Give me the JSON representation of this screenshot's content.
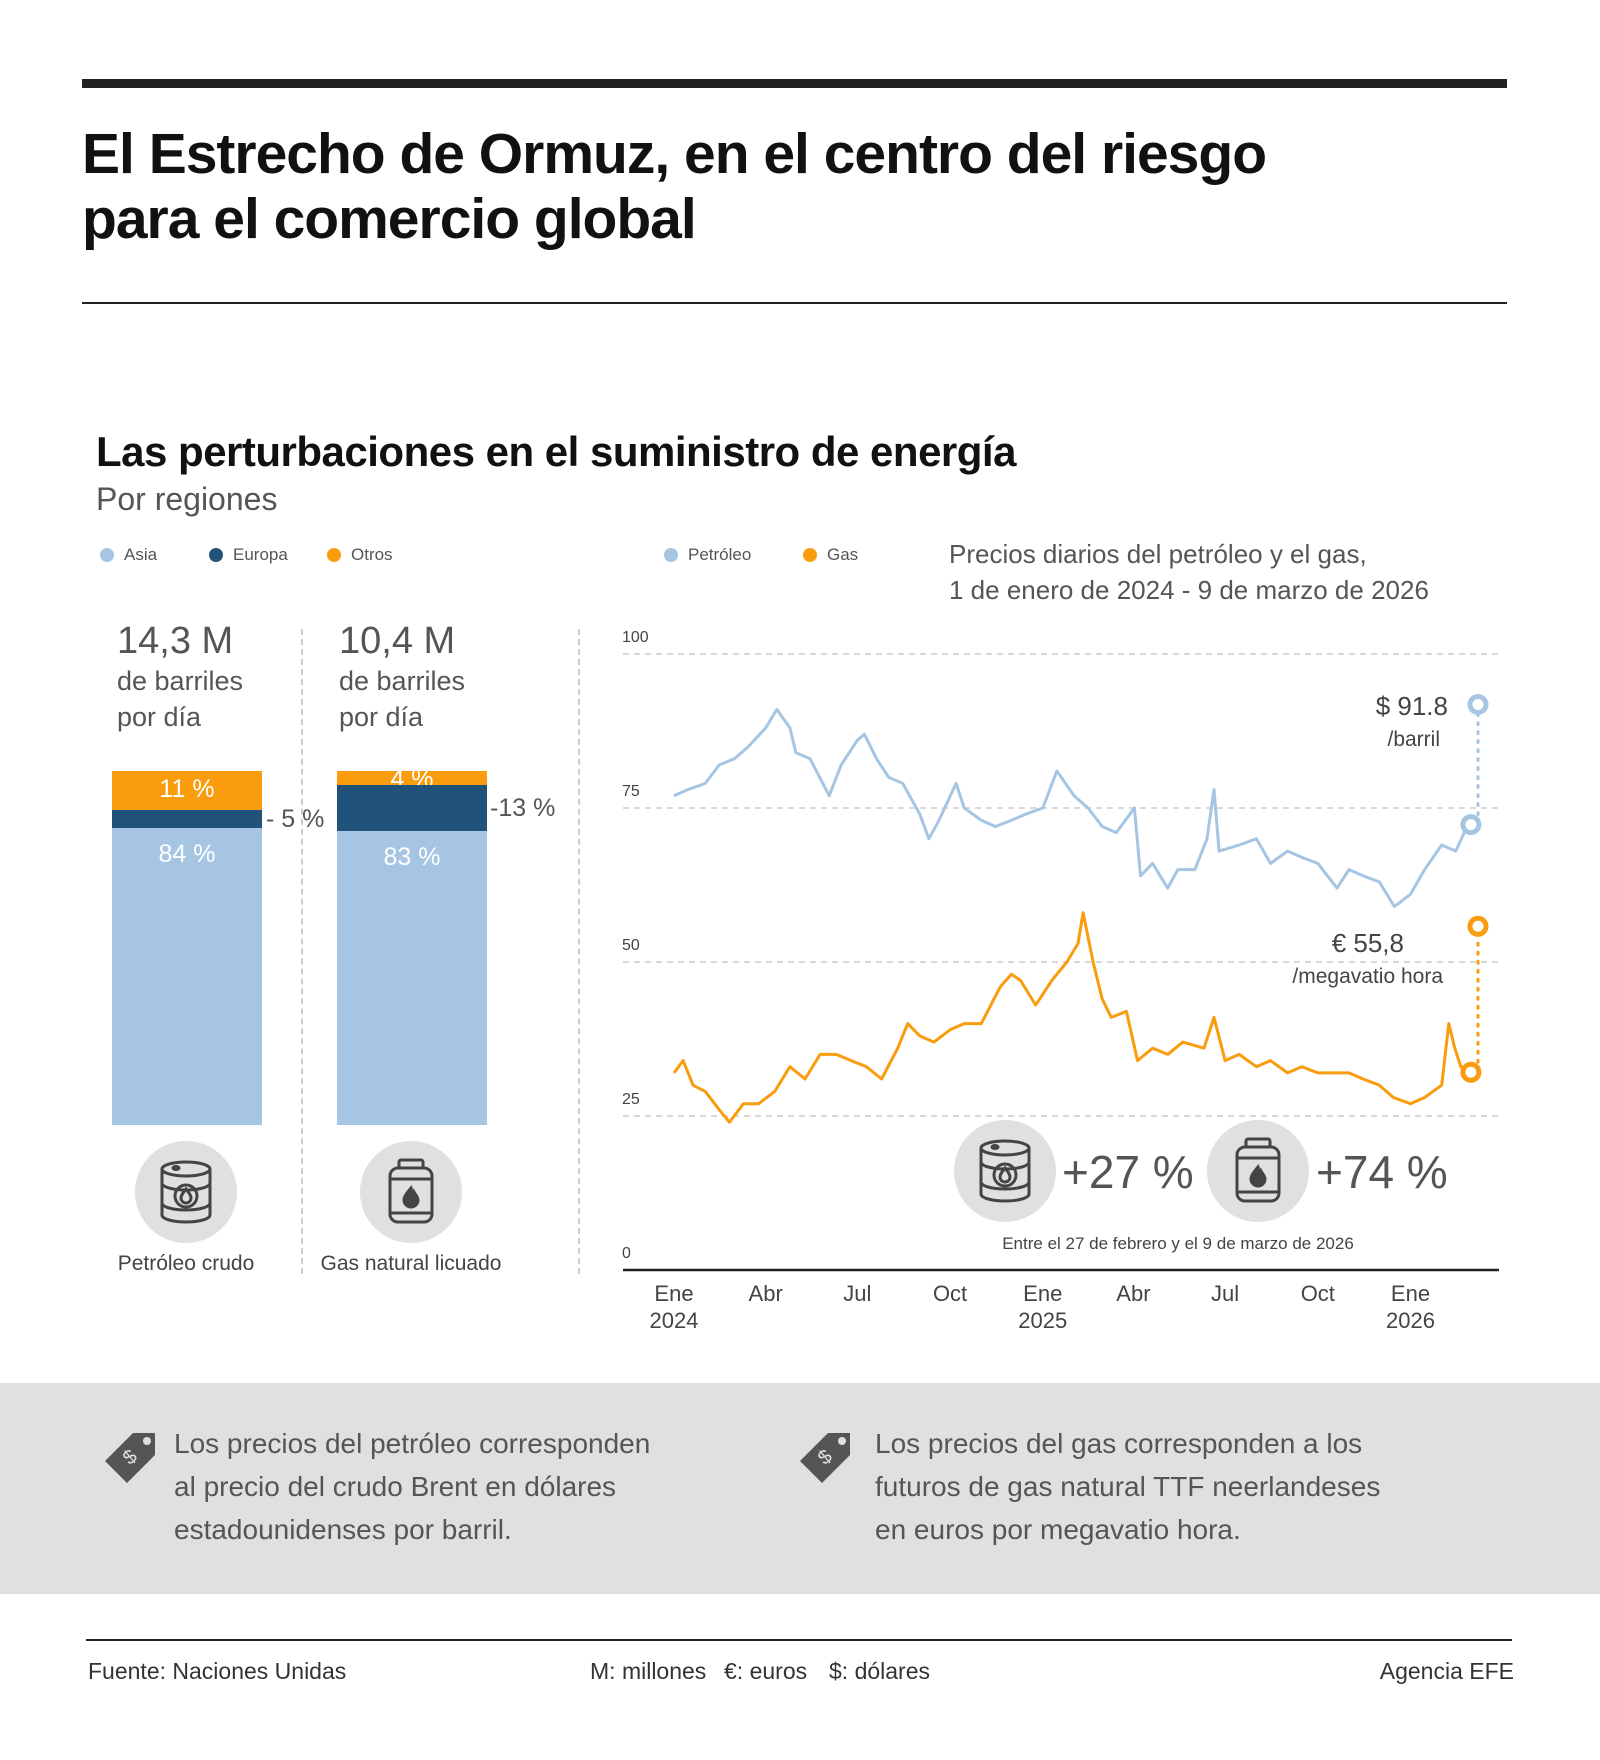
{
  "header": {
    "title_line1": "El Estrecho de Ormuz, en el centro del riesgo",
    "title_line2": "para el comercio global"
  },
  "section": {
    "title": "Las perturbaciones en el suministro de energía",
    "subtitle": "Por regiones"
  },
  "colors": {
    "asia": "#a6c5e3",
    "europa": "#21537a",
    "otros": "#f99c0e",
    "petroleo": "#a6c5e3",
    "gas": "#f99c0e"
  },
  "legend_regions": [
    {
      "label": "Asia",
      "color": "#a6c5e3"
    },
    {
      "label": "Europa",
      "color": "#21537a"
    },
    {
      "label": "Otros",
      "color": "#f99c0e"
    }
  ],
  "legend_prices": [
    {
      "label": "Petróleo",
      "color": "#a6c5e3"
    },
    {
      "label": "Gas",
      "color": "#f99c0e"
    }
  ],
  "chart_data": [
    {
      "type": "bar",
      "stacked": true,
      "percent": true,
      "categories": [
        "Petróleo crudo",
        "Gas natural licuado"
      ],
      "totals": [
        {
          "value": "14,3 M",
          "unit_line1": "de barriles",
          "unit_line2": "por día"
        },
        {
          "value": "10,4 M",
          "unit_line1": "de barriles",
          "unit_line2": "por día"
        }
      ],
      "series": [
        {
          "name": "Asia",
          "values": [
            84,
            83
          ],
          "labels": [
            "84 %",
            "83 %"
          ]
        },
        {
          "name": "Europa",
          "values": [
            5,
            13
          ],
          "labels": [
            "- 5 %",
            "-13 %"
          ]
        },
        {
          "name": "Otros",
          "values": [
            11,
            4
          ],
          "labels": [
            "11 %",
            "4 %"
          ]
        }
      ],
      "icons": [
        "oil-barrel-icon",
        "gas-cylinder-icon"
      ]
    },
    {
      "type": "line",
      "title_line1": "Precios diarios del petróleo y el gas,",
      "title_line2": "1 de enero de 2024 - 9 de marzo de 2026",
      "ylim": [
        0,
        100
      ],
      "yticks": [
        "0",
        "25",
        "50",
        "75",
        "100"
      ],
      "grid": true,
      "xticks": [
        {
          "date": "2024-01-01",
          "l1": "Ene",
          "l2": "2024"
        },
        {
          "date": "2024-04-01",
          "l1": "Abr",
          "l2": ""
        },
        {
          "date": "2024-07-01",
          "l1": "Jul",
          "l2": ""
        },
        {
          "date": "2024-10-01",
          "l1": "Oct",
          "l2": ""
        },
        {
          "date": "2025-01-01",
          "l1": "Ene",
          "l2": "2025"
        },
        {
          "date": "2025-04-01",
          "l1": "Abr",
          "l2": ""
        },
        {
          "date": "2025-07-01",
          "l1": "Jul",
          "l2": ""
        },
        {
          "date": "2025-10-01",
          "l1": "Oct",
          "l2": ""
        },
        {
          "date": "2026-01-01",
          "l1": "Ene",
          "l2": "2026"
        }
      ],
      "series": [
        {
          "name": "Petróleo",
          "color": "#a6c5e3",
          "points": [
            [
              "2024-01-01",
              77
            ],
            [
              "2024-01-15",
              78
            ],
            [
              "2024-02-01",
              79
            ],
            [
              "2024-02-15",
              82
            ],
            [
              "2024-03-01",
              83
            ],
            [
              "2024-03-15",
              85
            ],
            [
              "2024-04-01",
              88
            ],
            [
              "2024-04-12",
              91
            ],
            [
              "2024-04-25",
              88
            ],
            [
              "2024-05-01",
              84
            ],
            [
              "2024-05-15",
              83
            ],
            [
              "2024-06-03",
              77
            ],
            [
              "2024-06-15",
              82
            ],
            [
              "2024-07-01",
              86
            ],
            [
              "2024-07-08",
              87
            ],
            [
              "2024-07-20",
              83
            ],
            [
              "2024-08-01",
              80
            ],
            [
              "2024-08-15",
              79
            ],
            [
              "2024-09-01",
              74
            ],
            [
              "2024-09-10",
              70
            ],
            [
              "2024-09-20",
              73
            ],
            [
              "2024-10-07",
              79
            ],
            [
              "2024-10-15",
              75
            ],
            [
              "2024-11-01",
              73
            ],
            [
              "2024-11-15",
              72
            ],
            [
              "2024-12-01",
              73
            ],
            [
              "2024-12-15",
              74
            ],
            [
              "2025-01-01",
              75
            ],
            [
              "2025-01-15",
              81
            ],
            [
              "2025-02-01",
              77
            ],
            [
              "2025-02-15",
              75
            ],
            [
              "2025-03-01",
              72
            ],
            [
              "2025-03-15",
              71
            ],
            [
              "2025-04-02",
              75
            ],
            [
              "2025-04-08",
              64
            ],
            [
              "2025-04-20",
              66
            ],
            [
              "2025-05-05",
              62
            ],
            [
              "2025-05-15",
              65
            ],
            [
              "2025-06-01",
              65
            ],
            [
              "2025-06-13",
              70
            ],
            [
              "2025-06-20",
              78
            ],
            [
              "2025-06-25",
              68
            ],
            [
              "2025-07-15",
              69
            ],
            [
              "2025-08-01",
              70
            ],
            [
              "2025-08-15",
              66
            ],
            [
              "2025-09-01",
              68
            ],
            [
              "2025-09-15",
              67
            ],
            [
              "2025-10-01",
              66
            ],
            [
              "2025-10-20",
              62
            ],
            [
              "2025-11-01",
              65
            ],
            [
              "2025-11-15",
              64
            ],
            [
              "2025-12-01",
              63
            ],
            [
              "2025-12-16",
              59
            ],
            [
              "2026-01-01",
              61
            ],
            [
              "2026-01-15",
              65
            ],
            [
              "2026-02-01",
              69
            ],
            [
              "2026-02-15",
              68
            ],
            [
              "2026-02-27",
              72.3
            ]
          ],
          "end": {
            "date": "2026-03-09",
            "value": 91.8,
            "label": "$ 91.8",
            "unit": "/barril"
          }
        },
        {
          "name": "Gas",
          "color": "#f99c0e",
          "points": [
            [
              "2024-01-01",
              32
            ],
            [
              "2024-01-10",
              34
            ],
            [
              "2024-01-20",
              30
            ],
            [
              "2024-02-01",
              29
            ],
            [
              "2024-02-15",
              26
            ],
            [
              "2024-02-25",
              24
            ],
            [
              "2024-03-10",
              27
            ],
            [
              "2024-03-25",
              27
            ],
            [
              "2024-04-10",
              29
            ],
            [
              "2024-04-25",
              33
            ],
            [
              "2024-05-10",
              31
            ],
            [
              "2024-05-25",
              35
            ],
            [
              "2024-06-10",
              35
            ],
            [
              "2024-06-25",
              34
            ],
            [
              "2024-07-10",
              33
            ],
            [
              "2024-07-25",
              31
            ],
            [
              "2024-08-10",
              36
            ],
            [
              "2024-08-20",
              40
            ],
            [
              "2024-09-01",
              38
            ],
            [
              "2024-09-15",
              37
            ],
            [
              "2024-10-01",
              39
            ],
            [
              "2024-10-15",
              40
            ],
            [
              "2024-11-01",
              40
            ],
            [
              "2024-11-20",
              46
            ],
            [
              "2024-12-01",
              48
            ],
            [
              "2024-12-10",
              47
            ],
            [
              "2024-12-25",
              43
            ],
            [
              "2025-01-10",
              47
            ],
            [
              "2025-01-25",
              50
            ],
            [
              "2025-02-05",
              53
            ],
            [
              "2025-02-10",
              58
            ],
            [
              "2025-02-20",
              50
            ],
            [
              "2025-03-01",
              44
            ],
            [
              "2025-03-10",
              41
            ],
            [
              "2025-03-25",
              42
            ],
            [
              "2025-04-05",
              34
            ],
            [
              "2025-04-20",
              36
            ],
            [
              "2025-05-05",
              35
            ],
            [
              "2025-05-20",
              37
            ],
            [
              "2025-06-10",
              36
            ],
            [
              "2025-06-20",
              41
            ],
            [
              "2025-07-01",
              34
            ],
            [
              "2025-07-15",
              35
            ],
            [
              "2025-08-01",
              33
            ],
            [
              "2025-08-15",
              34
            ],
            [
              "2025-09-01",
              32
            ],
            [
              "2025-09-15",
              33
            ],
            [
              "2025-10-01",
              32
            ],
            [
              "2025-10-15",
              32
            ],
            [
              "2025-11-01",
              32
            ],
            [
              "2025-11-15",
              31
            ],
            [
              "2025-12-01",
              30
            ],
            [
              "2025-12-15",
              28
            ],
            [
              "2026-01-01",
              27
            ],
            [
              "2026-01-15",
              28
            ],
            [
              "2026-02-01",
              30
            ],
            [
              "2026-02-08",
              40
            ],
            [
              "2026-02-14",
              36
            ],
            [
              "2026-02-20",
              33
            ],
            [
              "2026-02-27",
              32.1
            ]
          ],
          "end": {
            "date": "2026-03-09",
            "value": 55.8,
            "label": "€ 55,8",
            "unit": "/megavatio hora"
          }
        }
      ],
      "changes": [
        {
          "icon": "oil-barrel-icon",
          "label": "+27 %"
        },
        {
          "icon": "gas-cylinder-icon",
          "label": "+74 %"
        }
      ],
      "changes_note": "Entre el 27 de febrero y el 9 de marzo de 2026"
    }
  ],
  "notes": [
    {
      "icon": "price-tag-dollar-icon",
      "lines": [
        "Los precios del petróleo corresponden",
        "al precio del crudo Brent en dólares",
        "estadounidenses por barril."
      ]
    },
    {
      "icon": "price-tag-dollar-icon",
      "lines": [
        "Los precios del gas corresponden a los",
        "futuros de gas natural TTF neerlandeses",
        "en euros por megavatio hora."
      ]
    }
  ],
  "footer": {
    "source": "Fuente: Naciones Unidas",
    "abbr1": "M: millones",
    "abbr2": "€: euros",
    "abbr3": "$: dólares",
    "credit": "Agencia EFE"
  }
}
